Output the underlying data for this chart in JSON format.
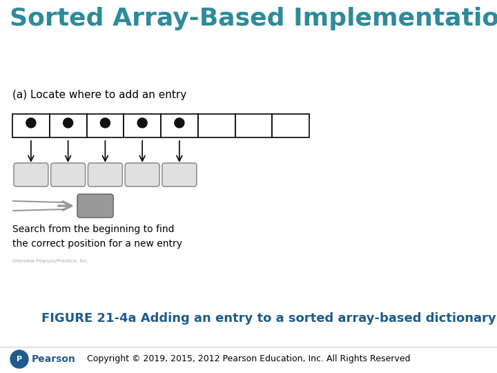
{
  "title": "Sorted Array-Based Implementations",
  "title_color": "#2E8B9A",
  "title_fontsize": 26,
  "title_bold": true,
  "bg_color": "#FFFFFF",
  "subtitle_a": "(a) Locate where to add an entry",
  "subtitle_a_fontsize": 11,
  "array_cells": 8,
  "filled_cells": 5,
  "cell_border_color": "#000000",
  "dot_color": "#111111",
  "arrow_color": "#111111",
  "rounded_rect_facecolor": "#E0E0E0",
  "rounded_rect_border": "#888888",
  "new_entry_color": "#999999",
  "search_text_line1": "Search from the beginning to find",
  "search_text_line2": "the correct position for a new entry",
  "text_fontsize": 10,
  "figure_caption": "FIGURE 21-4a Adding an entry to a sorted array-based dictionary",
  "figure_caption_color": "#1F5C8B",
  "figure_caption_fontsize": 13,
  "copyright_text": "Copyright © 2019, 2015, 2012 Pearson Education, Inc. All Rights Reserved",
  "copyright_fontsize": 9,
  "pearson_color": "#1F5C8B",
  "small_publisher_text": "Glenview Pearson/Prentice, Inc.",
  "small_publisher_fontsize": 5
}
